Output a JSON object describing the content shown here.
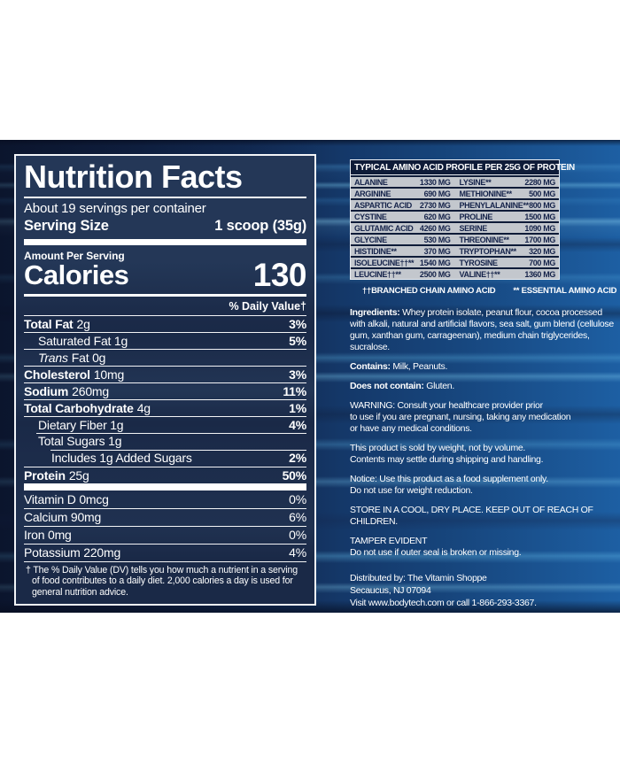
{
  "colors": {
    "label_navy": "#1a2947",
    "band_blue_left": "#0f1d3d",
    "band_blue_right": "#1d5fa3",
    "streak_cyan": "#57a7dd",
    "amino_row_silver": "#c3c7cd",
    "text_white": "#ffffff"
  },
  "nutrition_panel": {
    "title": "Nutrition Facts",
    "servings": "About 19 servings per container",
    "serving_size_label": "Serving Size",
    "serving_size_value": "1 scoop (35g)",
    "amount_per_serving": "Amount Per Serving",
    "calories_label": "Calories",
    "calories_value": "130",
    "daily_value_header": "% Daily Value†",
    "rows": [
      {
        "b": "Total Fat",
        "i": "",
        "r": "2g",
        "dv": "3%"
      },
      {
        "b": "",
        "i": "",
        "r": "Saturated Fat 1g",
        "dv": "5%"
      },
      {
        "b": "",
        "i": "Trans",
        "r": "Fat 0g",
        "dv": ""
      },
      {
        "b": "Cholesterol",
        "i": "",
        "r": "10mg",
        "dv": "3%"
      },
      {
        "b": "Sodium",
        "i": "",
        "r": "260mg",
        "dv": "11%"
      },
      {
        "b": "Total Carbohydrate",
        "i": "",
        "r": "4g",
        "dv": "1%"
      },
      {
        "b": "",
        "i": "",
        "r": "Dietary Fiber 1g",
        "dv": "4%"
      },
      {
        "b": "",
        "i": "",
        "r": "Total Sugars 1g",
        "dv": ""
      },
      {
        "b": "",
        "i": "",
        "r": "Includes 1g Added Sugars",
        "dv": "2%"
      },
      {
        "b": "Protein",
        "i": "",
        "r": "25g",
        "dv": "50%"
      }
    ],
    "vitamin_rows": [
      {
        "name": "Vitamin D 0mcg",
        "dv": "0%"
      },
      {
        "name": "Calcium 90mg",
        "dv": "6%"
      },
      {
        "name": "Iron 0mg",
        "dv": "0%"
      },
      {
        "name": "Potassium 220mg",
        "dv": "4%"
      }
    ],
    "footnote": "† The % Daily Value (DV) tells you how much a nutrient in a serving of food contributes to a daily diet. 2,000 calories a day is used for general nutrition advice."
  },
  "amino_panel": {
    "header": "TYPICAL AMINO ACID PROFILE PER 25G OF PROTEIN",
    "rows": [
      {
        "ln": "ALANINE",
        "lv": "1330 MG",
        "rn": "LYSINE**",
        "rv": "2280 MG"
      },
      {
        "ln": "ARGININE",
        "lv": "690 MG",
        "rn": "METHIONINE**",
        "rv": "500 MG"
      },
      {
        "ln": "ASPARTIC ACID",
        "lv": "2730 MG",
        "rn": "PHENYLALANINE**",
        "rv": "800 MG"
      },
      {
        "ln": "CYSTINE",
        "lv": "620 MG",
        "rn": "PROLINE",
        "rv": "1500 MG"
      },
      {
        "ln": "GLUTAMIC ACID",
        "lv": "4260 MG",
        "rn": "SERINE",
        "rv": "1090 MG"
      },
      {
        "ln": "GLYCINE",
        "lv": "530 MG",
        "rn": "THREONINE**",
        "rv": "1700 MG"
      },
      {
        "ln": "HISTIDINE**",
        "lv": "370 MG",
        "rn": "TRYPTOPHAN**",
        "rv": "320 MG"
      },
      {
        "ln": "ISOLEUCINE††**",
        "lv": "1540 MG",
        "rn": "TYROSINE",
        "rv": "700 MG"
      },
      {
        "ln": "LEUCINE††**",
        "lv": "2500 MG",
        "rn": "VALINE††**",
        "rv": "1360 MG"
      }
    ],
    "footnote_bcaa": "††BRANCHED CHAIN AMINO ACID",
    "footnote_eaa": "** ESSENTIAL AMINO ACID"
  },
  "info": {
    "ingredients_lead": "Ingredients:",
    "ingredients_text": "Whey protein isolate, peanut flour, cocoa processed with alkali, natural and artificial flavors, sea salt, gum blend (cellulose gum, xanthan gum, carrageenan), medium chain triglycerides, sucralose.",
    "contains_lead": "Contains:",
    "contains_text": "Milk, Peanuts.",
    "not_contain_lead": "Does not contain:",
    "not_contain_text": "Gluten.",
    "warning_lead": "WARNING:",
    "warning_text": "Consult your healthcare provider prior\nto use if you are pregnant, nursing, taking any medication\nor have any medical conditions.",
    "weight_text": "This product is sold by weight, not by volume.\nContents may settle during shipping and handling.",
    "notice_lead": "Notice:",
    "notice_text": "Use this product as a food supplement only.\nDo not use for weight reduction.",
    "storage_text": "STORE IN A COOL, DRY PLACE. KEEP OUT OF REACH OF\nCHILDREN.",
    "tamper_lead": "TAMPER EVIDENT",
    "tamper_text": "Do not use if outer seal is broken or missing.",
    "distributor": [
      "Distributed by: The Vitamin Shoppe",
      "Secaucus, NJ 07094",
      "Visit www.bodytech.com or call 1-866-293-3367."
    ]
  }
}
